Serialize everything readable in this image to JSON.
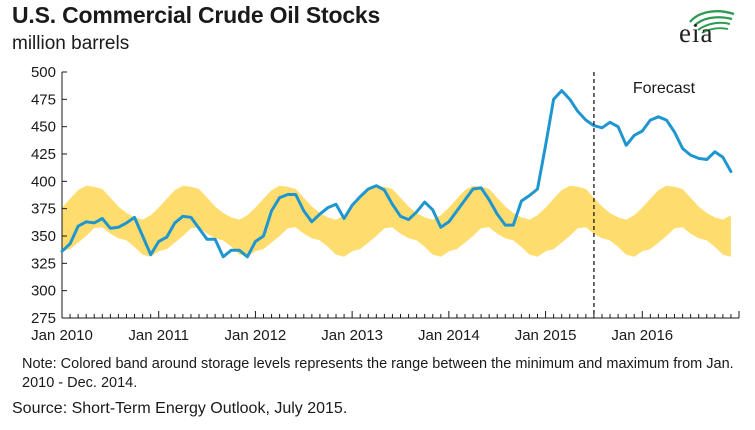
{
  "header": {
    "title": "U.S. Commercial Crude Oil Stocks",
    "subtitle": "million barrels",
    "logo_text": "eia"
  },
  "footer": {
    "note": "Note:  Colored band around storage levels represents the range between the minimum and maximum from Jan. 2010 - Dec. 2014.",
    "source": "Source: Short-Term Energy Outlook, July 2015."
  },
  "colors": {
    "line": "#1f96cf",
    "band": "#fedd6e",
    "axis": "#1a1a1a",
    "logo_arcs": "#2e9a52"
  },
  "chart_data": {
    "type": "line",
    "x_labels": [
      "Jan 2010",
      "Jan 2011",
      "Jan 2012",
      "Jan 2013",
      "Jan 2014",
      "Jan 2015",
      "Jan 2016"
    ],
    "ylim": [
      275,
      500
    ],
    "yticks": [
      275,
      300,
      325,
      350,
      375,
      400,
      425,
      450,
      475,
      500
    ],
    "grid": false,
    "forecast_label": "Forecast",
    "forecast_start": "Jul 2015",
    "series": [
      {
        "role": "stocks",
        "start": "Jan 2010",
        "frequency": "monthly",
        "values": [
          336,
          343,
          359,
          363,
          362,
          366,
          357,
          358,
          362,
          367,
          350,
          333,
          345,
          349,
          362,
          368,
          367,
          357,
          347,
          347,
          331,
          337,
          337,
          331,
          345,
          350,
          373,
          385,
          388,
          388,
          373,
          363,
          370,
          376,
          379,
          366,
          378,
          386,
          393,
          396,
          392,
          379,
          368,
          365,
          372,
          381,
          374,
          358,
          363,
          373,
          383,
          393,
          394,
          383,
          370,
          360,
          360,
          382,
          387,
          393,
          433,
          475,
          483,
          475,
          464,
          456,
          451,
          449,
          454,
          450,
          433,
          442,
          446,
          456,
          459,
          456,
          445,
          430,
          424,
          421,
          420,
          427,
          422,
          409
        ]
      }
    ],
    "band": {
      "role": "range",
      "months": [
        "Jan",
        "Feb",
        "Mar",
        "Apr",
        "May",
        "Jun",
        "Jul",
        "Aug",
        "Sep",
        "Oct",
        "Nov",
        "Dec"
      ],
      "min": [
        336,
        338,
        344,
        350,
        357,
        358,
        352,
        348,
        346,
        340,
        333,
        331
      ],
      "max": [
        376,
        384,
        392,
        396,
        395,
        393,
        385,
        377,
        371,
        367,
        365,
        369
      ]
    }
  }
}
